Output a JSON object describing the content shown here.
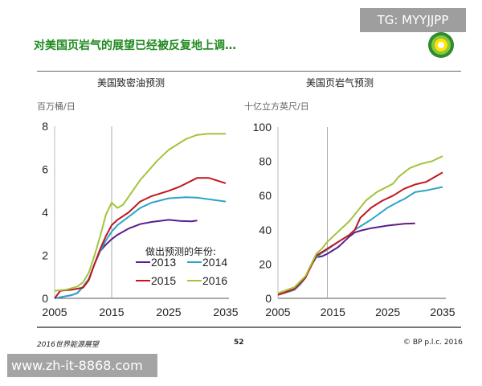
{
  "title": "对美国页岩气的展望已经被反复地上调…",
  "watermark_top": "TG: MYYJJPP",
  "watermark_bottom": "www.zh-it-8868.com",
  "footer": {
    "left": "2016世界能源展望",
    "page": "52",
    "right": "© BP p.l.c. 2016"
  },
  "colors": {
    "2013": "#5b1e8c",
    "2014": "#2ea3c8",
    "2015": "#c0161e",
    "2016": "#a3c43a",
    "title": "#1f8a1f"
  },
  "chart_data": [
    {
      "type": "line",
      "title": "美国致密油预测",
      "ylabel": "百万桶/日",
      "xlim": [
        2005,
        2035
      ],
      "ylim": [
        0,
        8
      ],
      "xticks": [
        2005,
        2015,
        2025,
        2035
      ],
      "yticks": [
        0,
        2,
        4,
        6,
        8
      ],
      "marker_line_x": 2015,
      "legend": {
        "title": "做出预测的年份:",
        "placement": "bottom-right"
      },
      "series": [
        {
          "name": "2013",
          "x": [
            2005,
            2006,
            2007,
            2008,
            2009,
            2010,
            2011,
            2012,
            2013,
            2014,
            2015,
            2016,
            2017,
            2018,
            2019,
            2020,
            2022,
            2025,
            2027,
            2029,
            2030
          ],
          "y": [
            0,
            0.05,
            0.1,
            0.15,
            0.25,
            0.55,
            0.9,
            1.6,
            2.2,
            2.5,
            2.75,
            2.95,
            3.1,
            3.25,
            3.35,
            3.45,
            3.55,
            3.65,
            3.6,
            3.58,
            3.62
          ]
        },
        {
          "name": "2014",
          "x": [
            2005,
            2006,
            2007,
            2008,
            2009,
            2010,
            2011,
            2012,
            2013,
            2014,
            2015,
            2016,
            2018,
            2020,
            2022,
            2025,
            2028,
            2030,
            2035
          ],
          "y": [
            0,
            0.05,
            0.1,
            0.15,
            0.25,
            0.55,
            0.9,
            1.6,
            2.2,
            2.7,
            3.1,
            3.4,
            3.8,
            4.2,
            4.45,
            4.65,
            4.7,
            4.68,
            4.5
          ]
        },
        {
          "name": "2015",
          "x": [
            2005,
            2006,
            2008,
            2009,
            2010,
            2011,
            2012,
            2013,
            2014,
            2015,
            2016,
            2018,
            2020,
            2022,
            2025,
            2027,
            2030,
            2032,
            2035
          ],
          "y": [
            0,
            0.35,
            0.4,
            0.45,
            0.5,
            0.85,
            1.6,
            2.3,
            2.9,
            3.4,
            3.65,
            4.0,
            4.5,
            4.75,
            5.0,
            5.2,
            5.6,
            5.6,
            5.35
          ]
        },
        {
          "name": "2016",
          "x": [
            2005,
            2007,
            2009,
            2010,
            2011,
            2012,
            2013,
            2014,
            2015,
            2016,
            2017,
            2020,
            2023,
            2025,
            2028,
            2030,
            2032,
            2035
          ],
          "y": [
            0.35,
            0.4,
            0.55,
            0.75,
            1.2,
            2.0,
            2.9,
            3.9,
            4.45,
            4.2,
            4.35,
            5.5,
            6.4,
            6.9,
            7.4,
            7.6,
            7.65,
            7.65
          ]
        }
      ]
    },
    {
      "type": "line",
      "title": "美国页岩气预测",
      "ylabel": "十亿立方英尺/日",
      "xlim": [
        2005,
        2035
      ],
      "ylim": [
        0,
        100
      ],
      "xticks": [
        2005,
        2015,
        2025,
        2035
      ],
      "yticks": [
        0,
        20,
        40,
        60,
        80,
        100
      ],
      "marker_line_x": 2014,
      "series": [
        {
          "name": "2013",
          "x": [
            2005,
            2007,
            2008,
            2009,
            2010,
            2011,
            2012,
            2013,
            2014,
            2016,
            2017,
            2018,
            2019,
            2020,
            2022,
            2025,
            2028,
            2030
          ],
          "y": [
            2,
            4,
            5,
            8,
            12,
            19,
            24,
            24.5,
            26,
            30,
            33,
            36,
            38.5,
            39.5,
            41,
            42.5,
            43.5,
            43.8
          ]
        },
        {
          "name": "2014",
          "x": [
            2005,
            2007,
            2008,
            2009,
            2010,
            2011,
            2012,
            2013,
            2014,
            2016,
            2018,
            2019,
            2020,
            2022,
            2025,
            2027,
            2028,
            2030,
            2032,
            2035
          ],
          "y": [
            2,
            4,
            5,
            8,
            12,
            19,
            24,
            26.5,
            28.5,
            33,
            37,
            40,
            42,
            46,
            53,
            56.5,
            58,
            62,
            63,
            65
          ]
        },
        {
          "name": "2015",
          "x": [
            2005,
            2008,
            2010,
            2012,
            2013,
            2014,
            2016,
            2018,
            2019,
            2020,
            2022,
            2024,
            2026,
            2028,
            2030,
            2032,
            2035
          ],
          "y": [
            2,
            5.5,
            12,
            25,
            27,
            29,
            33,
            37,
            40,
            47,
            53,
            57,
            60,
            64,
            66.5,
            68,
            73.5
          ]
        },
        {
          "name": "2016",
          "x": [
            2005,
            2008,
            2010,
            2012,
            2013,
            2014,
            2016,
            2018,
            2020,
            2021,
            2023,
            2026,
            2027,
            2029,
            2031,
            2033,
            2035
          ],
          "y": [
            3,
            6.5,
            13,
            26,
            29,
            33,
            39,
            45,
            53,
            57,
            62,
            67,
            71,
            76,
            78.5,
            80,
            83
          ]
        }
      ]
    }
  ]
}
